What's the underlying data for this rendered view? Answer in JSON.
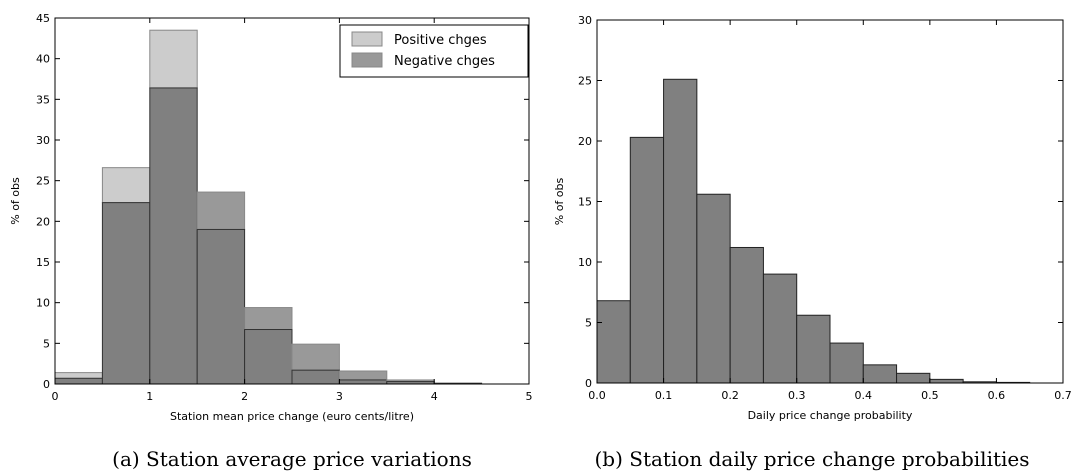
{
  "chart_data": [
    {
      "type": "bar",
      "caption": "(a) Station average price variations",
      "xlabel": "Station mean price change (euro cents/litre)",
      "ylabel": "% of obs",
      "xlim": [
        0,
        5
      ],
      "ylim": [
        0,
        45
      ],
      "xticks": [
        0,
        1,
        2,
        3,
        4,
        5
      ],
      "yticks": [
        0,
        5,
        10,
        15,
        20,
        25,
        30,
        35,
        40,
        45
      ],
      "bin_edges": [
        0,
        0.5,
        1.0,
        1.5,
        2.0,
        2.5,
        3.0,
        3.5,
        4.0,
        4.5,
        5.0
      ],
      "legend_position": "top-right",
      "grid": false,
      "series": [
        {
          "name": "Positive chges",
          "color": "#cccccc",
          "values": [
            1.4,
            26.6,
            43.5,
            19.0,
            6.7,
            1.7,
            0.5,
            0.3,
            0.1,
            0.0
          ]
        },
        {
          "name": "Negative chges",
          "color": "#999999",
          "values": [
            0.7,
            22.3,
            36.4,
            23.6,
            9.4,
            4.9,
            1.6,
            0.5,
            0.1,
            0.0
          ]
        }
      ],
      "overlap_color": "#808080"
    },
    {
      "type": "bar",
      "caption": "(b) Station daily price change probabilities",
      "xlabel": "Daily price change probability",
      "ylabel": "% of obs",
      "xlim": [
        0.0,
        0.7
      ],
      "ylim": [
        0,
        30
      ],
      "xticks": [
        0.0,
        0.1,
        0.2,
        0.3,
        0.4,
        0.5,
        0.6,
        0.7
      ],
      "yticks": [
        0,
        5,
        10,
        15,
        20,
        25,
        30
      ],
      "bin_edges": [
        0.0,
        0.05,
        0.1,
        0.15,
        0.2,
        0.25,
        0.3,
        0.35,
        0.4,
        0.45,
        0.5,
        0.55,
        0.6,
        0.65
      ],
      "grid": false,
      "series": [
        {
          "color": "#808080",
          "values": [
            6.8,
            20.3,
            25.1,
            15.6,
            11.2,
            9.0,
            5.6,
            3.3,
            1.5,
            0.8,
            0.3,
            0.1,
            0.05
          ]
        }
      ]
    }
  ]
}
